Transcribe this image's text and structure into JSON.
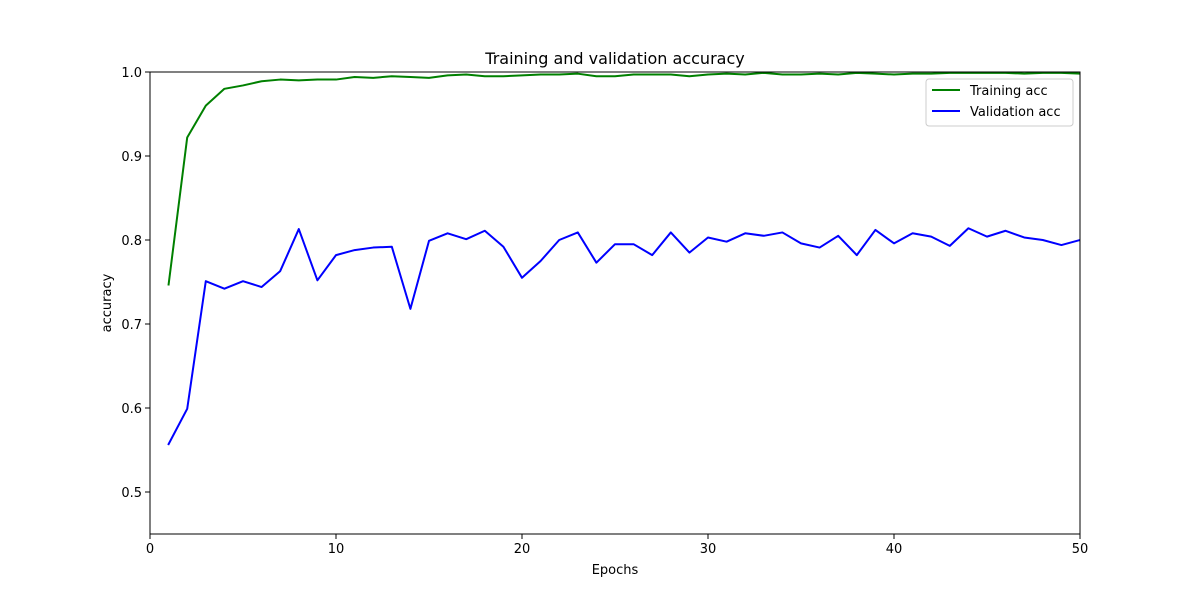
{
  "chart_data": {
    "type": "line",
    "title": "Training and validation accuracy",
    "xlabel": "Epochs",
    "ylabel": "accuracy",
    "xlim": [
      0,
      50
    ],
    "ylim": [
      0.45,
      1.0
    ],
    "xticks": [
      0,
      10,
      20,
      30,
      40,
      50
    ],
    "yticks": [
      0.5,
      0.6,
      0.7,
      0.8,
      0.9,
      1.0
    ],
    "xtick_labels": [
      "0",
      "10",
      "20",
      "30",
      "40",
      "50"
    ],
    "ytick_labels": [
      "0.5",
      "0.6",
      "0.7",
      "0.8",
      "0.9",
      "1.0"
    ],
    "grid": false,
    "legend_position": "top-right",
    "x": [
      1,
      2,
      3,
      4,
      5,
      6,
      7,
      8,
      9,
      10,
      11,
      12,
      13,
      14,
      15,
      16,
      17,
      18,
      19,
      20,
      21,
      22,
      23,
      24,
      25,
      26,
      27,
      28,
      29,
      30,
      31,
      32,
      33,
      34,
      35,
      36,
      37,
      38,
      39,
      40,
      41,
      42,
      43,
      44,
      45,
      46,
      47,
      48,
      49,
      50
    ],
    "series": [
      {
        "name": "Training acc",
        "color": "#008000",
        "values": [
          0.747,
          0.922,
          0.96,
          0.98,
          0.984,
          0.989,
          0.991,
          0.99,
          0.991,
          0.991,
          0.994,
          0.993,
          0.995,
          0.994,
          0.993,
          0.996,
          0.997,
          0.995,
          0.995,
          0.996,
          0.997,
          0.997,
          0.998,
          0.995,
          0.995,
          0.997,
          0.997,
          0.997,
          0.995,
          0.997,
          0.998,
          0.997,
          0.999,
          0.997,
          0.997,
          0.998,
          0.997,
          0.999,
          0.998,
          0.997,
          0.998,
          0.998,
          0.999,
          0.999,
          0.999,
          0.999,
          0.998,
          0.999,
          0.999,
          0.998
        ]
      },
      {
        "name": "Validation acc",
        "color": "#0000ff",
        "values": [
          0.557,
          0.599,
          0.751,
          0.742,
          0.751,
          0.744,
          0.763,
          0.813,
          0.752,
          0.782,
          0.788,
          0.791,
          0.792,
          0.718,
          0.799,
          0.808,
          0.801,
          0.811,
          0.792,
          0.755,
          0.775,
          0.8,
          0.809,
          0.773,
          0.795,
          0.795,
          0.782,
          0.809,
          0.785,
          0.803,
          0.798,
          0.808,
          0.805,
          0.809,
          0.796,
          0.791,
          0.805,
          0.782,
          0.812,
          0.796,
          0.808,
          0.804,
          0.793,
          0.814,
          0.804,
          0.811,
          0.803,
          0.8,
          0.794,
          0.8
        ]
      }
    ]
  }
}
